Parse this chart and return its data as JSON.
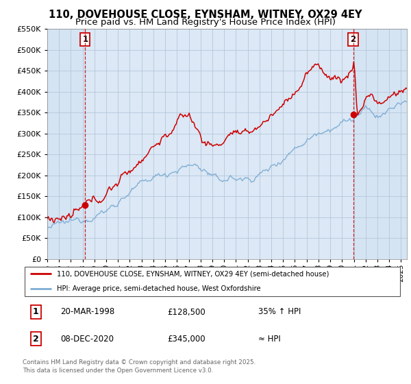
{
  "title": "110, DOVEHOUSE CLOSE, EYNSHAM, WITNEY, OX29 4EY",
  "subtitle": "Price paid vs. HM Land Registry's House Price Index (HPI)",
  "ylim": [
    0,
    550000
  ],
  "yticks": [
    0,
    50000,
    100000,
    150000,
    200000,
    250000,
    300000,
    350000,
    400000,
    450000,
    500000,
    550000
  ],
  "xlim_start": 1995.0,
  "xlim_end": 2025.5,
  "plot_bg_color": "#dce8f5",
  "grid_color": "#b0c4d8",
  "sale1_date": 1998.22,
  "sale1_price": 128500,
  "sale2_date": 2020.94,
  "sale2_price": 345000,
  "hpi_line_color": "#7dadd4",
  "price_line_color": "#cc0000",
  "vline_color": "#cc0000",
  "legend_line1": "110, DOVEHOUSE CLOSE, EYNSHAM, WITNEY, OX29 4EY (semi-detached house)",
  "legend_line2": "HPI: Average price, semi-detached house, West Oxfordshire",
  "table_row1": [
    "1",
    "20-MAR-1998",
    "£128,500",
    "35% ↑ HPI"
  ],
  "table_row2": [
    "2",
    "08-DEC-2020",
    "£345,000",
    "≈ HPI"
  ],
  "footer": "Contains HM Land Registry data © Crown copyright and database right 2025.\nThis data is licensed under the Open Government Licence v3.0.",
  "title_fontsize": 10.5,
  "subtitle_fontsize": 9.5,
  "tick_fontsize": 8
}
